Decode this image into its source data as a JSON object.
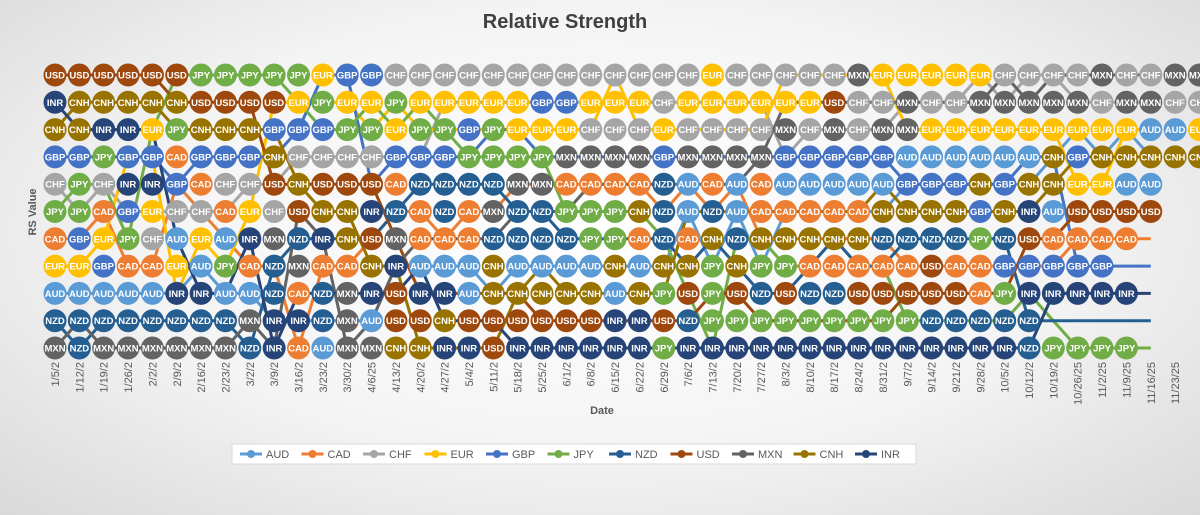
{
  "chart_data": {
    "type": "line",
    "title": "Relative Strength",
    "xlabel": "Date",
    "ylabel": "RS Value",
    "x": [
      "1/5/25",
      "1/12/25",
      "1/19/25",
      "1/26/25",
      "2/2/25",
      "2/9/25",
      "2/16/25",
      "2/23/25",
      "3/2/25",
      "3/9/25",
      "3/16/25",
      "3/23/25",
      "3/30/25",
      "4/6/25",
      "4/13/25",
      "4/20/25",
      "4/27/25",
      "5/4/25",
      "5/11/25",
      "5/18/25",
      "5/25/25",
      "6/1/25",
      "6/8/25",
      "6/15/25",
      "6/22/25",
      "6/29/25",
      "7/6/25",
      "7/13/25",
      "7/20/25",
      "7/27/25",
      "8/3/25",
      "8/10/25",
      "8/17/25",
      "8/24/25",
      "8/31/25",
      "9/7/25",
      "9/14/25",
      "9/21/25",
      "9/28/25",
      "10/5/25",
      "10/12/25",
      "10/19/25",
      "10/26/25",
      "11/2/25",
      "11/9/25",
      "11/16/25"
    ],
    "x_tick_labels": [
      "1/5/2",
      "1/12/2",
      "1/19/2",
      "1/26/2",
      "2/2/2",
      "2/9/2",
      "2/16/2",
      "2/23/2",
      "3/2/2",
      "3/9/2",
      "3/16/2",
      "3/23/2",
      "3/30/2",
      "4/6/25",
      "4/13/2",
      "4/20/2",
      "4/27/2",
      "5/4/2",
      "5/11/2",
      "5/18/2",
      "5/25/2",
      "6/1/2",
      "6/8/2",
      "6/15/2",
      "6/22/2",
      "6/29/2",
      "7/6/2",
      "7/13/2",
      "7/20/2",
      "7/27/2",
      "8/3/2",
      "8/10/2",
      "8/17/2",
      "8/24/2",
      "8/31/2",
      "9/7/2",
      "9/14/2",
      "9/21/2",
      "9/28/2",
      "10/5/2",
      "10/12/2",
      "10/19/2",
      "10/26/25",
      "11/2/25",
      "11/9/25",
      "11/16/25",
      "11/23/25"
    ],
    "ylim": [
      0,
      12
    ],
    "grid": false,
    "legend": "bottom",
    "grid_rows": [
      "USD USD USD USD USD USD JPY JPY JPY JPY JPY EUR GBP GBP CHF CHF CHF CHF CHF CHF CHF CHF CHF CHF CHF CHF CHF EUR CHF CHF CHF CHF CHF MXN EUR EUR EUR EUR EUR CHF CHF CHF CHF MXN CHF CHF MXN MXN MXN MXN",
      "INR CNH CNH CNH CNH CNH USD USD USD USD EUR JPY EUR EUR JPY EUR EUR EUR EUR EUR GBP GBP EUR EUR EUR CHF EUR EUR EUR EUR EUR EUR USD CHF CHF MXN CHF CHF MXN MXN MXN MXN MXN CHF MXN MXN CHF CHF CHF CHF",
      "CNH CNH INR INR EUR JPY CNH CNH CNH GBP GBP GBP JPY JPY EUR JPY JPY GBP JPY EUR EUR EUR CHF CHF CHF EUR CHF CHF CHF CHF MXN CHF MXN CHF MXN MXN EUR EUR EUR EUR EUR EUR EUR EUR EUR AUD AUD EUR EUR EUR",
      "GBP GBP JPY GBP GBP CAD GBP GBP GBP CNH CHF CHF CHF CHF GBP GBP GBP JPY JPY JPY JPY MXN MXN MXN MXN GBP MXN MXN MXN MXN GBP GBP GBP GBP GBP AUD AUD AUD AUD AUD AUD CNH GBP CNH CNH CNH CNH CNH CNH CNH",
      "CHF JPY CHF INR INR GBP CAD CHF CHF USD CNH USD USD USD CAD NZD NZD NZD NZD MXN MXN CAD CAD CAD CAD NZD AUD CAD AUD CAD AUD AUD AUD AUD AUD GBP GBP GBP CNH GBP CNH CNH EUR EUR AUD AUD",
      "JPY JPY CAD GBP EUR CHF CHF CAD EUR CHF USD CNH CNH INR NZD CAD NZD CAD MXN NZD NZD JPY JPY JPY CNH NZD AUD NZD AUD CAD CAD CAD CAD CAD CNH CNH CNH CNH GBP CNH INR AUD USD USD USD USD",
      "CAD GBP EUR JPY CHF AUD EUR AUD INR MXN NZD INR CNH USD MXN CAD CAD CAD NZD NZD NZD NZD JPY JPY CAD NZD CAD CNH NZD CNH CNH CNH CNH CNH NZD NZD NZD NZD JPY NZD USD CAD CAD CAD CAD",
      "EUR EUR GBP CAD CAD EUR AUD JPY CAD NZD MXN CAD CAD CNH INR AUD AUD AUD CNH AUD AUD AUD AUD CNH AUD CNH CNH JPY CNH JPY JPY CAD CAD CAD CAD CAD USD CAD CAD GBP GBP GBP GBP GBP",
      "AUD AUD AUD AUD AUD INR INR AUD AUD NZD CAD NZD MXN INR USD INR INR AUD CNH CNH CNH CNH CNH AUD CNH JPY USD JPY USD NZD USD NZD NZD USD USD USD USD USD CAD JPY INR INR INR INR INR",
      "NZD NZD NZD NZD NZD NZD NZD NZD MXN INR INR NZD MXN AUD USD USD CNH USD USD USD USD USD USD INR INR USD NZD JPY JPY JPY JPY JPY JPY JPY JPY JPY NZD NZD NZD NZD NZD",
      "MXN NZD MXN MXN MXN MXN MXN MXN NZD INR CAD AUD MXN MXN CNH CNH INR INR USD INR INR INR INR INR INR JPY INR INR INR INR INR INR INR INR INR INR INR INR INR INR NZD JPY JPY JPY JPY"
    ],
    "series": [
      {
        "name": "AUD",
        "color": "#5b9bd5",
        "values": [
          3,
          3,
          3,
          3,
          3,
          3,
          4,
          3,
          3,
          2,
          2,
          2,
          2,
          2,
          4,
          4,
          4,
          4,
          3,
          4,
          4,
          4,
          4,
          4,
          4,
          4,
          6,
          4,
          6,
          4,
          6,
          6,
          6,
          6,
          6,
          7,
          7,
          7,
          7,
          7,
          7,
          8,
          9,
          8,
          9,
          8
        ]
      },
      {
        "name": "CAD",
        "color": "#ed7d31",
        "values": [
          5,
          5,
          6,
          4,
          4,
          7,
          6,
          5,
          4,
          4,
          1,
          4,
          4,
          5,
          6,
          6,
          5,
          6,
          6,
          7,
          7,
          7,
          7,
          7,
          7,
          6,
          7,
          6,
          7,
          5,
          5,
          5,
          5,
          5,
          5,
          4,
          4,
          4,
          4,
          4,
          4,
          4,
          5,
          5,
          5,
          5
        ]
      },
      {
        "name": "CHF",
        "color": "#a5a5a5",
        "values": [
          7,
          6,
          7,
          6,
          6,
          6,
          6,
          6,
          7,
          7,
          8,
          8,
          8,
          8,
          8,
          8,
          10,
          10,
          10,
          10,
          10,
          10,
          10,
          10,
          10,
          10,
          10,
          10,
          10,
          10,
          8,
          9,
          9,
          9,
          9,
          10,
          10,
          10,
          11,
          10,
          11,
          11,
          10,
          10,
          10,
          10
        ]
      },
      {
        "name": "EUR",
        "color": "#ffc000",
        "values": [
          4,
          4,
          5,
          8,
          8,
          3,
          5,
          4,
          6,
          10,
          10,
          10,
          10,
          9,
          10,
          9,
          9,
          9,
          9,
          9,
          9,
          9,
          9,
          11,
          9,
          9,
          9,
          9,
          9,
          9,
          11,
          11,
          11,
          11,
          11,
          9,
          9,
          9,
          9,
          9,
          9,
          9,
          7,
          7,
          9,
          9
        ]
      },
      {
        "name": "GBP",
        "color": "#4472c4",
        "values": [
          8,
          8,
          8,
          8,
          8,
          7,
          8,
          8,
          8,
          8,
          9,
          11,
          11,
          7,
          8,
          8,
          8,
          8,
          9,
          9,
          8,
          8,
          8,
          8,
          8,
          8,
          8,
          8,
          8,
          8,
          8,
          8,
          8,
          8,
          8,
          7,
          7,
          7,
          7,
          7,
          8,
          8,
          4,
          4,
          4,
          4
        ]
      },
      {
        "name": "JPY",
        "color": "#70ad47",
        "values": [
          6,
          7,
          7,
          5,
          9,
          11,
          11,
          11,
          11,
          11,
          10,
          9,
          9,
          10,
          9,
          10,
          9,
          8,
          8,
          8,
          8,
          6,
          6,
          6,
          6,
          5,
          3,
          1,
          5,
          5,
          4,
          4,
          5,
          4,
          4,
          2,
          2,
          2,
          2,
          2,
          3,
          2,
          1,
          1,
          1,
          1
        ]
      },
      {
        "name": "NZD",
        "color": "#255e91",
        "values": [
          2,
          1,
          2,
          2,
          2,
          2,
          2,
          2,
          1,
          4,
          5,
          5,
          5,
          5,
          6,
          7,
          7,
          7,
          7,
          6,
          6,
          5,
          5,
          5,
          5,
          5,
          4,
          5,
          4,
          3,
          3,
          4,
          5,
          4,
          4,
          5,
          5,
          5,
          5,
          5,
          2,
          2,
          2,
          2,
          2,
          2
        ]
      },
      {
        "name": "USD",
        "color": "#9e480e",
        "values": [
          11,
          11,
          11,
          11,
          11,
          10,
          10,
          10,
          10,
          7,
          7,
          7,
          7,
          7,
          5,
          3,
          3,
          3,
          3,
          3,
          2,
          2,
          2,
          2,
          2,
          2,
          2,
          3,
          3,
          2,
          2,
          2,
          2,
          2,
          2,
          3,
          3,
          3,
          3,
          3,
          5,
          5,
          6,
          6,
          6,
          6
        ]
      },
      {
        "name": "MXN",
        "color": "#636363",
        "values": [
          1,
          2,
          1,
          1,
          1,
          1,
          1,
          1,
          2,
          1,
          6,
          5,
          1,
          2,
          4,
          5,
          5,
          5,
          5,
          6,
          6,
          6,
          7,
          7,
          7,
          7,
          7,
          7,
          7,
          8,
          10,
          10,
          10,
          10,
          10,
          10,
          10,
          10,
          10,
          11,
          10,
          11,
          11,
          11,
          11,
          11
        ]
      },
      {
        "name": "CNH",
        "color": "#997300",
        "values": [
          9,
          10,
          10,
          10,
          10,
          9,
          9,
          9,
          9,
          9,
          7,
          6,
          6,
          4,
          4,
          1,
          1,
          1,
          1,
          3,
          4,
          3,
          3,
          3,
          3,
          3,
          6,
          6,
          6,
          6,
          6,
          6,
          6,
          6,
          7,
          6,
          6,
          6,
          6,
          6,
          6,
          7,
          8,
          8,
          8,
          8
        ]
      },
      {
        "name": "INR",
        "color": "#264478",
        "values": [
          10,
          9,
          9,
          9,
          9,
          5,
          3,
          3,
          5,
          1,
          3,
          3,
          3,
          3,
          3,
          4,
          2,
          2,
          2,
          1,
          1,
          1,
          1,
          1,
          1,
          1,
          1,
          1,
          1,
          1,
          1,
          1,
          1,
          1,
          1,
          1,
          1,
          1,
          1,
          1,
          1,
          3,
          3,
          3,
          3,
          3
        ]
      }
    ]
  }
}
